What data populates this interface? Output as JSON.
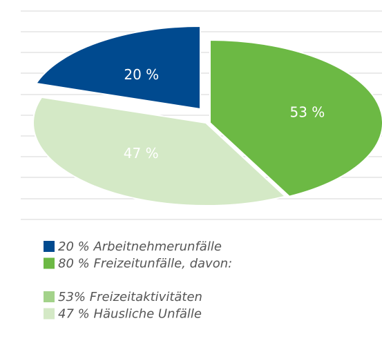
{
  "chart_data": {
    "type": "pie",
    "slices": [
      {
        "name": "Arbeitnehmerunfälle",
        "value": 20,
        "label": "20 %",
        "color": "#004a8f"
      },
      {
        "name": "Freizeitunfälle, davon:",
        "value": 80,
        "label": "80 %",
        "color": "#6cb944",
        "parts": [
          {
            "name": "Freizeitaktivitäten",
            "value": 53,
            "label": "53 %",
            "legend_label": "53%",
            "color": "#6cb944",
            "legend_color": "#a3d28a"
          },
          {
            "name": "Häusliche Unfälle",
            "value": 47,
            "label": "47 %",
            "legend_label": "47 %",
            "color": "#d4e9c6",
            "legend_color": "#d4e9c6"
          }
        ]
      }
    ]
  }
}
